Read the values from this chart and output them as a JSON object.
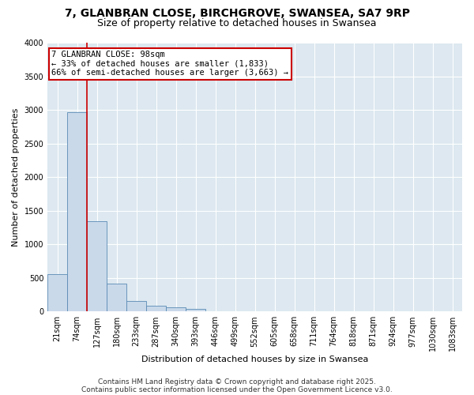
{
  "title_line1": "7, GLANBRAN CLOSE, BIRCHGROVE, SWANSEA, SA7 9RP",
  "title_line2": "Size of property relative to detached houses in Swansea",
  "xlabel": "Distribution of detached houses by size in Swansea",
  "ylabel": "Number of detached properties",
  "bar_color": "#c9d9ea",
  "bar_edge_color": "#5a8ab5",
  "background_color": "#dde8f0",
  "fig_background_color": "#ffffff",
  "grid_color": "#ffffff",
  "annotation_box_color": "#cc0000",
  "vline_color": "#cc0000",
  "categories": [
    "21sqm",
    "74sqm",
    "127sqm",
    "180sqm",
    "233sqm",
    "287sqm",
    "340sqm",
    "393sqm",
    "446sqm",
    "499sqm",
    "552sqm",
    "605sqm",
    "658sqm",
    "711sqm",
    "764sqm",
    "818sqm",
    "871sqm",
    "924sqm",
    "977sqm",
    "1030sqm",
    "1083sqm"
  ],
  "values": [
    560,
    2960,
    1340,
    410,
    155,
    90,
    60,
    40,
    0,
    0,
    0,
    0,
    0,
    0,
    0,
    0,
    0,
    0,
    0,
    0,
    0
  ],
  "ylim": [
    0,
    4000
  ],
  "yticks": [
    0,
    500,
    1000,
    1500,
    2000,
    2500,
    3000,
    3500,
    4000
  ],
  "vline_x": 1.5,
  "annotation_line1": "7 GLANBRAN CLOSE: 98sqm",
  "annotation_line2": "← 33% of detached houses are smaller (1,833)",
  "annotation_line3": "66% of semi-detached houses are larger (3,663) →",
  "footer_line1": "Contains HM Land Registry data © Crown copyright and database right 2025.",
  "footer_line2": "Contains public sector information licensed under the Open Government Licence v3.0.",
  "title_fontsize": 10,
  "subtitle_fontsize": 9,
  "annotation_fontsize": 7.5,
  "footer_fontsize": 6.5,
  "axis_label_fontsize": 8,
  "tick_fontsize": 7
}
